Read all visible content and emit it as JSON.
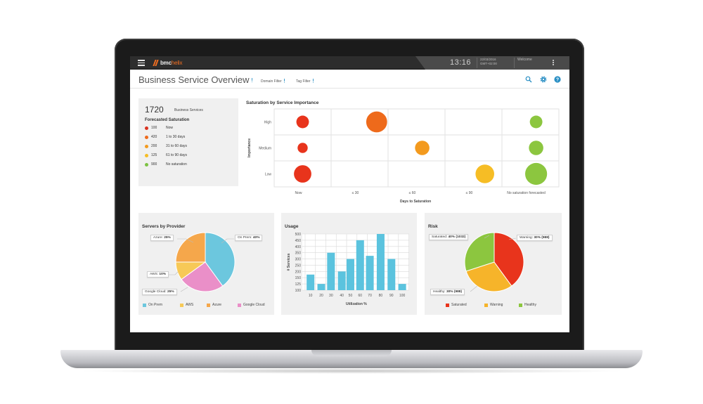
{
  "header": {
    "brand_bmc": "bmc",
    "brand_helix": "helix",
    "clock": "13:16",
    "date_line1": "22/03/2016",
    "date_line2": "GMT+02:00",
    "welcome": "Welcome",
    "title": "Business Service Overview",
    "domain_filter": "Domain Filter",
    "tag_filter": "Tag Filter",
    "icons": [
      "menu-icon",
      "search-icon",
      "gear-icon",
      "help-icon",
      "kebab-icon"
    ]
  },
  "summary": {
    "count": "1720",
    "count_label": "Business Services",
    "subtitle": "Forecasted Saturation",
    "items": [
      {
        "value": "100",
        "label": "Now",
        "color": "#d9321f"
      },
      {
        "value": "420",
        "label": "1 to 30 days",
        "color": "#ee6a1b"
      },
      {
        "value": "200",
        "label": "31 to 60 days",
        "color": "#f39a1e"
      },
      {
        "value": "125",
        "label": "61 to 90 days",
        "color": "#f6bd25"
      },
      {
        "value": "900",
        "label": "No saturation",
        "color": "#7cc242"
      }
    ]
  },
  "chart_data": [
    {
      "type": "scatter",
      "title": "Saturation by Service Importance",
      "xlabel": "Days to Saturation",
      "ylabel": "Importance",
      "x_categories": [
        "Now",
        "≤ 30",
        "≤ 60",
        "≤ 90",
        "No saturation forecasted"
      ],
      "y_categories": [
        "High",
        "Medium",
        "Low"
      ],
      "points": [
        {
          "x": "Now",
          "y": "High",
          "size": 2,
          "color": "#e8341c"
        },
        {
          "x": "≤ 30",
          "y": "High",
          "size": 8,
          "color": "#ee6a1b"
        },
        {
          "x": "No saturation forecasted",
          "y": "High",
          "size": 2,
          "color": "#8cc63f"
        },
        {
          "x": "Now",
          "y": "Medium",
          "size": 1,
          "color": "#e8341c"
        },
        {
          "x": "≤ 60",
          "y": "Medium",
          "size": 3,
          "color": "#f39a1e"
        },
        {
          "x": "No saturation forecasted",
          "y": "Medium",
          "size": 3,
          "color": "#8cc63f"
        },
        {
          "x": "Now",
          "y": "Low",
          "size": 5,
          "color": "#e8341c"
        },
        {
          "x": "≤ 90",
          "y": "Low",
          "size": 6,
          "color": "#f6bd25"
        },
        {
          "x": "No saturation forecasted",
          "y": "Low",
          "size": 9,
          "color": "#8cc63f"
        }
      ],
      "grid": true
    },
    {
      "type": "pie",
      "title": "Servers by Provider",
      "slices": [
        {
          "name": "On Prem",
          "value": 40,
          "label": "On Prem: ",
          "pct": "40%",
          "color": "#6cc7de"
        },
        {
          "name": "Google Cloud",
          "value": 25,
          "label": "Google Cloud: ",
          "pct": "25%",
          "color": "#ea8fc8"
        },
        {
          "name": "AWS",
          "value": 10,
          "label": "AWS: ",
          "pct": "10%",
          "color": "#f7c957"
        },
        {
          "name": "Azure",
          "value": 25,
          "label": "Azure: ",
          "pct": "25%",
          "color": "#f5a74b"
        }
      ],
      "legend": [
        "On Prem",
        "AWS",
        "Azure",
        "Google Cloud"
      ],
      "legend_placement": "bottom"
    },
    {
      "type": "bar",
      "title": "Usage",
      "xlabel": "Utilization %",
      "ylabel": "# Services",
      "x_ticks": [
        "10",
        "20",
        "30",
        "40",
        "50",
        "60",
        "70",
        "80",
        "90",
        "100"
      ],
      "y_ticks": [
        "100",
        "125",
        "150",
        "200",
        "250",
        "300",
        "350",
        "400",
        "450",
        "500"
      ],
      "ylim": [
        100,
        500
      ],
      "bar_color": "#5bc3de",
      "values": [
        2.5,
        1,
        6,
        3,
        5,
        8,
        5.5,
        9,
        5,
        1
      ],
      "bar_x": [
        1,
        2,
        2.9,
        3.9,
        4.7,
        5.6,
        6.5,
        7.5,
        8.5,
        9.5
      ],
      "grid": true
    },
    {
      "type": "pie",
      "title": "Risk",
      "slices": [
        {
          "name": "Saturated",
          "value": 40,
          "label": "Saturated: ",
          "pct": "40% (1032)",
          "color": "#e8341c"
        },
        {
          "name": "Warning",
          "value": 30,
          "label": "Warning: ",
          "pct": "30% (988)",
          "color": "#f6b42a"
        },
        {
          "name": "Healthy",
          "value": 30,
          "label": "Healthy: ",
          "pct": "30% (988)",
          "color": "#8cc63f"
        }
      ],
      "legend": [
        "Saturated",
        "Warning",
        "Healthy"
      ],
      "legend_placement": "bottom"
    }
  ]
}
